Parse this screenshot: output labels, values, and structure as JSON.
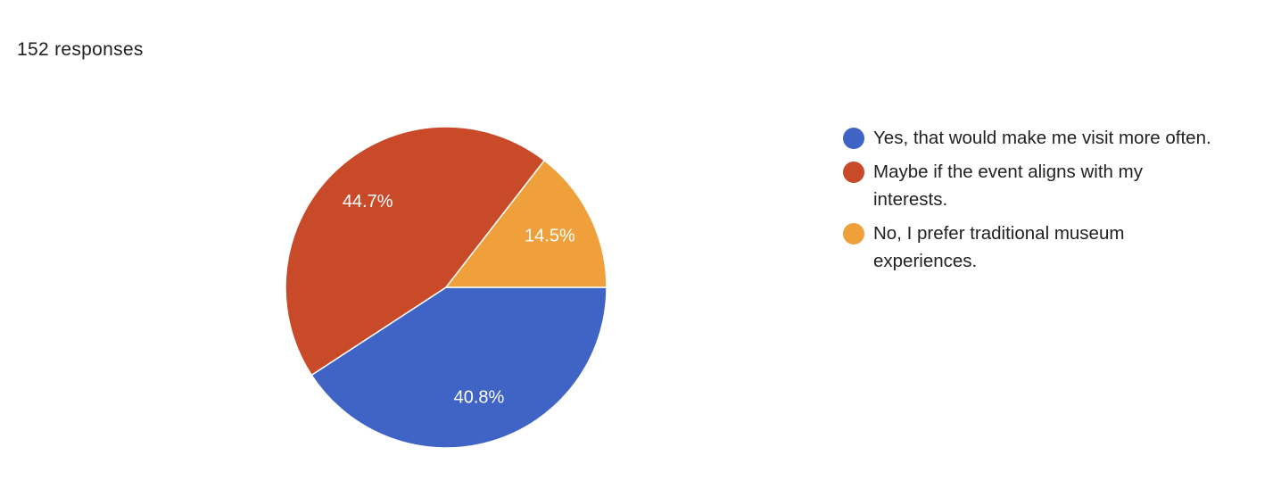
{
  "chart_data": {
    "type": "pie",
    "title": "152 responses",
    "categories": [
      "Yes, that would make me visit more often.",
      "Maybe if the event aligns with my interests.",
      "No, I prefer traditional museum experiences."
    ],
    "values": [
      40.8,
      44.7,
      14.5
    ],
    "value_labels": [
      "40.8%",
      "44.7%",
      "14.5%"
    ],
    "colors": [
      "#3f64c5",
      "#c94a29",
      "#f0a03b"
    ]
  }
}
